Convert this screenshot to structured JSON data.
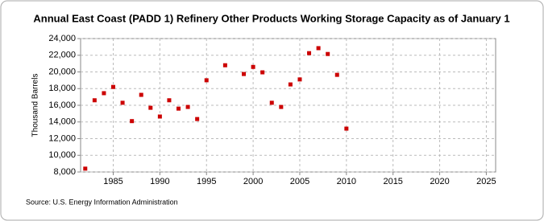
{
  "chart_data": {
    "type": "scatter",
    "title": "Annual East Coast (PADD 1) Refinery Other Products Working Storage Capacity as of January 1",
    "y_label": "Thousand Barrels",
    "source": "Source: U.S. Energy Information Administration",
    "x": [
      1982,
      1983,
      1984,
      1985,
      1986,
      1987,
      1988,
      1989,
      1990,
      1991,
      1992,
      1993,
      1994,
      1995,
      1997,
      1999,
      2000,
      2001,
      2002,
      2003,
      2004,
      2005,
      2006,
      2007,
      2008,
      2009,
      2010
    ],
    "values": [
      8400,
      16600,
      17450,
      18200,
      16300,
      14100,
      17250,
      15700,
      14650,
      16600,
      15600,
      15800,
      14350,
      19000,
      20800,
      19750,
      20600,
      19950,
      16300,
      15800,
      18500,
      19100,
      22250,
      22850,
      22150,
      19650,
      13200
    ],
    "color": "#cc0000",
    "xlim": [
      1981.5,
      2026
    ],
    "xticks": [
      1985,
      1990,
      1995,
      2000,
      2005,
      2010,
      2015,
      2020,
      2025
    ],
    "ylim": [
      8000,
      24000
    ],
    "yticks": [
      {
        "value": 8000,
        "label": "8,000"
      },
      {
        "value": 10000,
        "label": "10,000"
      },
      {
        "value": 12000,
        "label": "12,000"
      },
      {
        "value": 14000,
        "label": "14,000"
      },
      {
        "value": 16000,
        "label": "16,000"
      },
      {
        "value": 18000,
        "label": "18,000"
      },
      {
        "value": 20000,
        "label": "20,000"
      },
      {
        "value": 22000,
        "label": "22,000"
      },
      {
        "value": 24000,
        "label": "24,000"
      }
    ],
    "grid": true
  }
}
